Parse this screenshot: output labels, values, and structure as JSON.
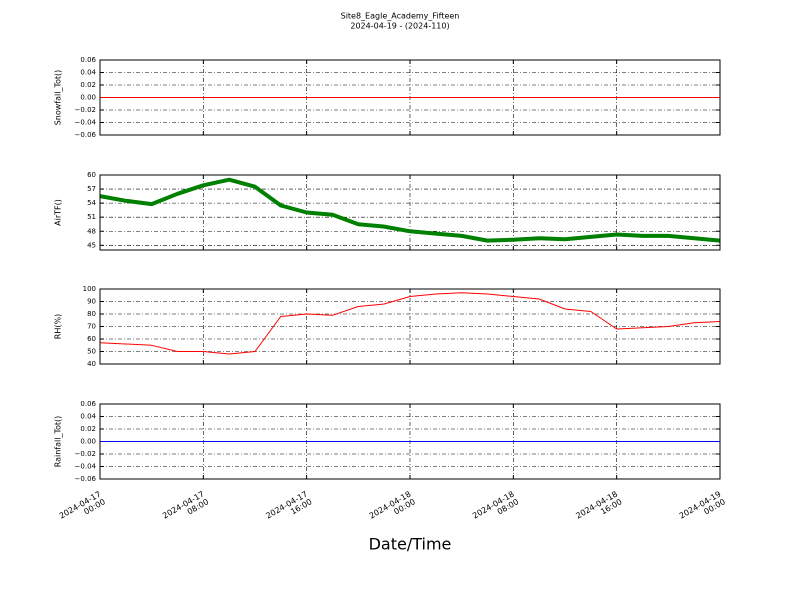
{
  "figure": {
    "title": "Site8_Eagle_Academy_Fifteen",
    "subtitle": "2024-04-19 - (2024-110)",
    "xlabel": "Date/Time",
    "xlim": [
      "2024-04-17 00:00",
      "2024-04-19 00:00"
    ],
    "xticks": [
      "2024-04-17 00:00",
      "2024-04-17 08:00",
      "2024-04-17 16:00",
      "2024-04-18 00:00",
      "2024-04-18 08:00",
      "2024-04-18 16:00",
      "2024-04-19 00:00"
    ],
    "grid": true
  },
  "chart_data": [
    {
      "type": "line",
      "ylabel": "Snowfall_Tot()",
      "x": [
        "2024-04-17 00:00",
        "2024-04-17 02:00",
        "2024-04-17 04:00",
        "2024-04-17 06:00",
        "2024-04-17 08:00",
        "2024-04-17 10:00",
        "2024-04-17 12:00",
        "2024-04-17 14:00",
        "2024-04-17 16:00",
        "2024-04-17 18:00",
        "2024-04-17 20:00",
        "2024-04-17 22:00",
        "2024-04-18 00:00",
        "2024-04-18 02:00",
        "2024-04-18 04:00",
        "2024-04-18 06:00",
        "2024-04-18 08:00",
        "2024-04-18 10:00",
        "2024-04-18 12:00",
        "2024-04-18 14:00",
        "2024-04-18 16:00",
        "2024-04-18 18:00",
        "2024-04-18 20:00",
        "2024-04-18 22:00",
        "2024-04-19 00:00"
      ],
      "series": [
        {
          "color": "#ff0000",
          "width": 1,
          "values": [
            0,
            0,
            0,
            0,
            0,
            0,
            0,
            0,
            0,
            0,
            0,
            0,
            0,
            0,
            0,
            0,
            0,
            0,
            0,
            0,
            0,
            0,
            0,
            0,
            0
          ]
        }
      ],
      "ylim": [
        -0.06,
        0.06
      ],
      "yticks": [
        {
          "value": -0.06,
          "label": "−0.06"
        },
        {
          "value": -0.04,
          "label": "−0.04"
        },
        {
          "value": -0.02,
          "label": "−0.02"
        },
        {
          "value": 0,
          "label": "0.00"
        },
        {
          "value": 0.02,
          "label": "0.02"
        },
        {
          "value": 0.04,
          "label": "0.04"
        },
        {
          "value": 0.06,
          "label": "0.06"
        }
      ]
    },
    {
      "type": "line",
      "ylabel": "AirTF()",
      "x": [
        "2024-04-17 00:00",
        "2024-04-17 02:00",
        "2024-04-17 04:00",
        "2024-04-17 06:00",
        "2024-04-17 08:00",
        "2024-04-17 10:00",
        "2024-04-17 12:00",
        "2024-04-17 14:00",
        "2024-04-17 16:00",
        "2024-04-17 18:00",
        "2024-04-17 20:00",
        "2024-04-17 22:00",
        "2024-04-18 00:00",
        "2024-04-18 02:00",
        "2024-04-18 04:00",
        "2024-04-18 06:00",
        "2024-04-18 08:00",
        "2024-04-18 10:00",
        "2024-04-18 12:00",
        "2024-04-18 14:00",
        "2024-04-18 16:00",
        "2024-04-18 18:00",
        "2024-04-18 20:00",
        "2024-04-18 22:00",
        "2024-04-19 00:00"
      ],
      "series": [
        {
          "color": "#008000",
          "width": 4,
          "values": [
            55.5,
            54.5,
            53.8,
            56,
            57.8,
            59,
            57.5,
            53.5,
            52,
            51.5,
            49.5,
            49,
            48,
            47.5,
            47,
            46,
            46.2,
            46.5,
            46.3,
            46.8,
            47.3,
            47,
            47,
            46.5,
            46
          ]
        }
      ],
      "ylim": [
        44,
        60
      ],
      "yticks": [
        45,
        48,
        51,
        54,
        57,
        60
      ]
    },
    {
      "type": "line",
      "ylabel": "RH(%)",
      "x": [
        "2024-04-17 00:00",
        "2024-04-17 02:00",
        "2024-04-17 04:00",
        "2024-04-17 06:00",
        "2024-04-17 08:00",
        "2024-04-17 10:00",
        "2024-04-17 12:00",
        "2024-04-17 14:00",
        "2024-04-17 16:00",
        "2024-04-17 18:00",
        "2024-04-17 20:00",
        "2024-04-17 22:00",
        "2024-04-18 00:00",
        "2024-04-18 02:00",
        "2024-04-18 04:00",
        "2024-04-18 06:00",
        "2024-04-18 08:00",
        "2024-04-18 10:00",
        "2024-04-18 12:00",
        "2024-04-18 14:00",
        "2024-04-18 16:00",
        "2024-04-18 18:00",
        "2024-04-18 20:00",
        "2024-04-18 22:00",
        "2024-04-19 00:00"
      ],
      "series": [
        {
          "color": "#ff0000",
          "width": 1,
          "values": [
            57,
            56,
            55,
            50,
            50,
            48,
            50,
            78,
            80,
            79,
            86,
            88,
            94,
            96,
            97,
            96,
            94,
            92,
            84,
            82,
            68,
            69,
            70,
            73,
            74
          ]
        }
      ],
      "ylim": [
        40,
        100
      ],
      "yticks": [
        40,
        50,
        60,
        70,
        80,
        90,
        100
      ]
    },
    {
      "type": "line",
      "ylabel": "Rainfall_Tot()",
      "x": [
        "2024-04-17 00:00",
        "2024-04-17 02:00",
        "2024-04-17 04:00",
        "2024-04-17 06:00",
        "2024-04-17 08:00",
        "2024-04-17 10:00",
        "2024-04-17 12:00",
        "2024-04-17 14:00",
        "2024-04-17 16:00",
        "2024-04-17 18:00",
        "2024-04-17 20:00",
        "2024-04-17 22:00",
        "2024-04-18 00:00",
        "2024-04-18 02:00",
        "2024-04-18 04:00",
        "2024-04-18 06:00",
        "2024-04-18 08:00",
        "2024-04-18 10:00",
        "2024-04-18 12:00",
        "2024-04-18 14:00",
        "2024-04-18 16:00",
        "2024-04-18 18:00",
        "2024-04-18 20:00",
        "2024-04-18 22:00",
        "2024-04-19 00:00"
      ],
      "series": [
        {
          "color": "#0000ff",
          "width": 1,
          "values": [
            0,
            0,
            0,
            0,
            0,
            0,
            0,
            0,
            0,
            0,
            0,
            0,
            0,
            0,
            0,
            0,
            0,
            0,
            0,
            0,
            0,
            0,
            0,
            0,
            0
          ]
        }
      ],
      "ylim": [
        -0.06,
        0.06
      ],
      "yticks": [
        {
          "value": -0.06,
          "label": "−0.06"
        },
        {
          "value": -0.04,
          "label": "−0.04"
        },
        {
          "value": -0.02,
          "label": "−0.02"
        },
        {
          "value": 0,
          "label": "0.00"
        },
        {
          "value": 0.02,
          "label": "0.02"
        },
        {
          "value": 0.04,
          "label": "0.04"
        },
        {
          "value": 0.06,
          "label": "0.06"
        }
      ]
    }
  ]
}
